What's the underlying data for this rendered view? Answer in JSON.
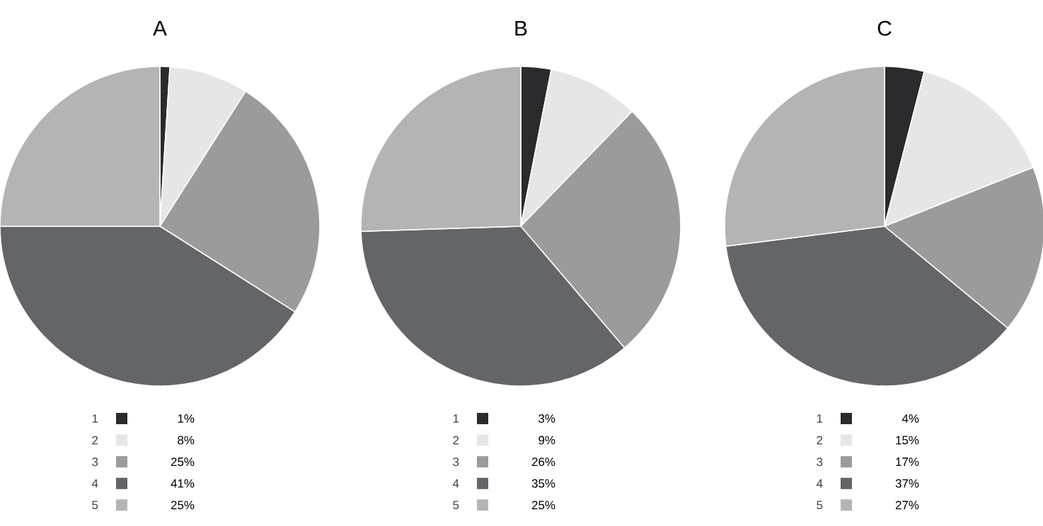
{
  "chart_data": [
    {
      "type": "pie",
      "title": "A",
      "categories": [
        "1",
        "2",
        "3",
        "4",
        "5"
      ],
      "values": [
        1,
        8,
        25,
        41,
        25
      ],
      "colors": [
        "#2b2b2d",
        "#e6e6e6",
        "#9b9b9b",
        "#646568",
        "#b4b4b4"
      ],
      "value_labels": [
        "1%",
        "8%",
        "25%",
        "41%",
        "25%"
      ],
      "legend": "bottom"
    },
    {
      "type": "pie",
      "title": "B",
      "categories": [
        "1",
        "2",
        "3",
        "4",
        "5"
      ],
      "values": [
        3,
        9,
        26,
        35,
        25
      ],
      "colors": [
        "#2b2b2d",
        "#e6e6e6",
        "#9b9b9b",
        "#646568",
        "#b4b4b4"
      ],
      "value_labels": [
        "3%",
        "9%",
        "26%",
        "35%",
        "25%"
      ],
      "legend": "bottom"
    },
    {
      "type": "pie",
      "title": "C",
      "categories": [
        "1",
        "2",
        "3",
        "4",
        "5"
      ],
      "values": [
        4,
        15,
        17,
        37,
        27
      ],
      "colors": [
        "#2b2b2d",
        "#e6e6e6",
        "#9b9b9b",
        "#646568",
        "#b4b4b4"
      ],
      "value_labels": [
        "4%",
        "15%",
        "17%",
        "37%",
        "27%"
      ],
      "legend": "bottom"
    }
  ]
}
